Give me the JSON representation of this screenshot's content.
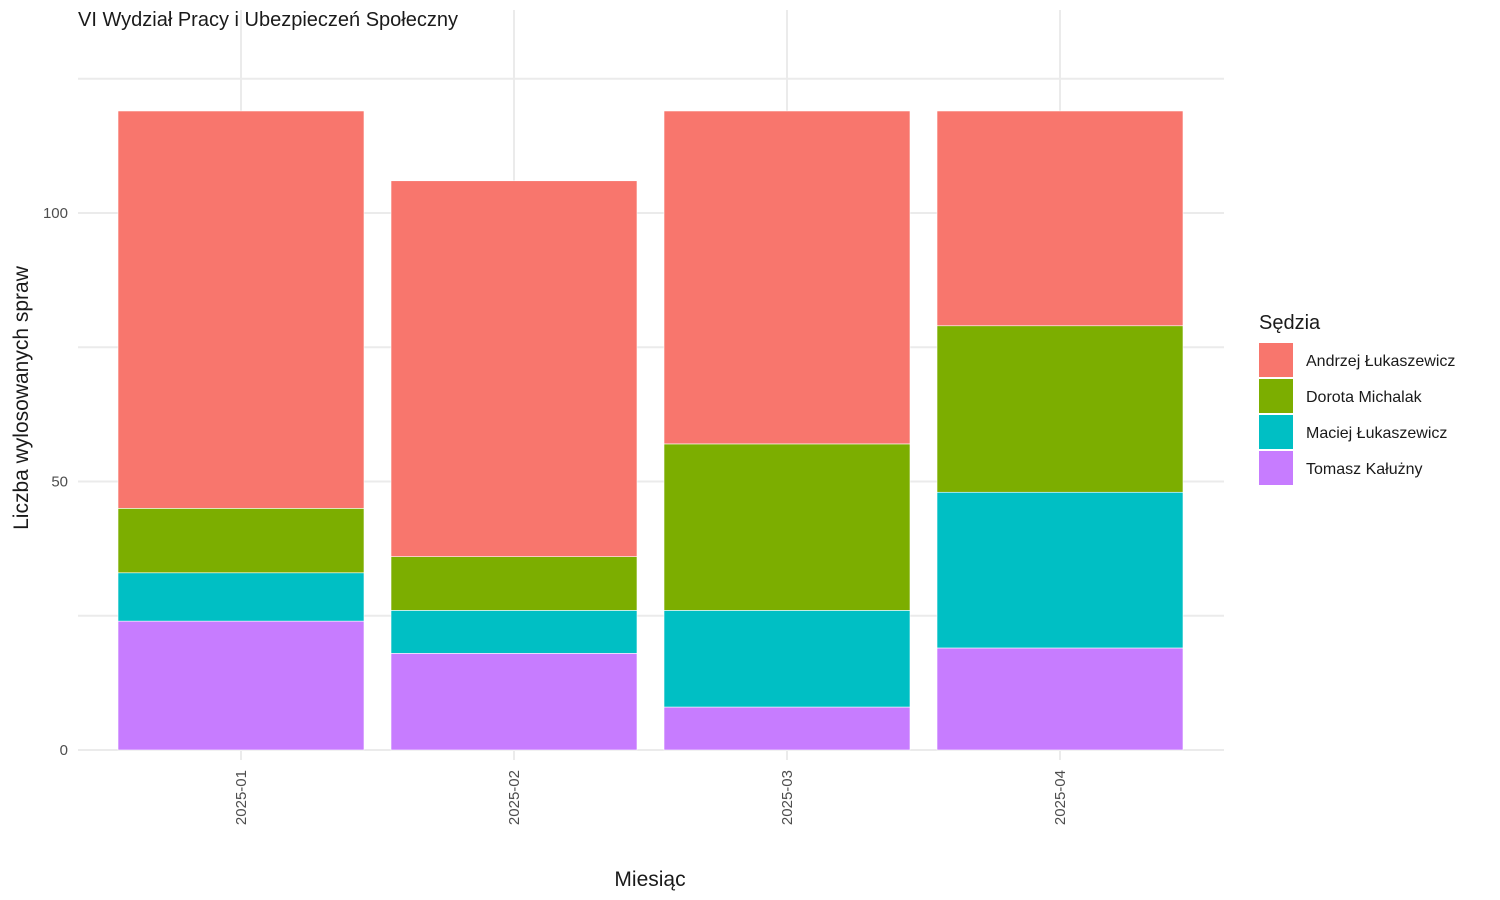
{
  "chart_data": {
    "type": "bar",
    "stacked": true,
    "title": "VI Wydział Pracy i Ubezpieczeń Społeczny",
    "xlabel": "Miesiąc",
    "ylabel": "Liczba wylosowanych spraw",
    "categories": [
      "2025-01",
      "2025-02",
      "2025-03",
      "2025-04"
    ],
    "ylim": [
      0,
      132
    ],
    "yticks": [
      0,
      50,
      100
    ],
    "grid": true,
    "legend": {
      "title": "Sędzia",
      "position": "right"
    },
    "series": [
      {
        "name": "Tomasz Kałużny",
        "color": "#C77CFF",
        "values": [
          24,
          18,
          8,
          19
        ]
      },
      {
        "name": "Maciej Łukaszewicz",
        "color": "#00BFC4",
        "values": [
          9,
          8,
          18,
          29
        ]
      },
      {
        "name": "Dorota Michalak",
        "color": "#7CAE00",
        "values": [
          12,
          10,
          31,
          31
        ]
      },
      {
        "name": "Andrzej Łukaszewicz",
        "color": "#F8766D",
        "values": [
          74,
          70,
          62,
          40
        ]
      }
    ],
    "legend_order": [
      "Andrzej Łukaszewicz",
      "Dorota Michalak",
      "Maciej Łukaszewicz",
      "Tomasz Kałużny"
    ]
  }
}
